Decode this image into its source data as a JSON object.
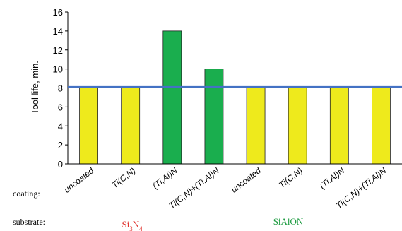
{
  "chart_data": {
    "type": "bar",
    "ylabel": "Tool life, min.",
    "ylim": [
      0,
      16
    ],
    "yticks": [
      0,
      2,
      4,
      6,
      8,
      10,
      12,
      14,
      16
    ],
    "categories": [
      "uncoated",
      "Ti(C,N)",
      "(Ti,Al)N",
      "Ti(C,N)+(Ti,Al)N",
      "uncoated",
      "Ti(C,N)",
      "(Ti,Al)N",
      "Ti(C,N)+(Ti,Al)N"
    ],
    "values": [
      8,
      8,
      14,
      10,
      8,
      8,
      8,
      8
    ],
    "bar_colors": [
      "#eeea1c",
      "#eeea1c",
      "#1aae4e",
      "#1aae4e",
      "#eeea1c",
      "#eeea1c",
      "#eeea1c",
      "#eeea1c"
    ],
    "reference_line": {
      "value": 8.1,
      "color": "#4472c4"
    },
    "grid": false,
    "row_labels": {
      "coating": "coating:",
      "substrate": "substrate:"
    },
    "substrates": [
      {
        "name": "Si3N4",
        "color": "#e0312c"
      },
      {
        "name": "SiAlON",
        "color": "#1a9a3e"
      }
    ]
  }
}
